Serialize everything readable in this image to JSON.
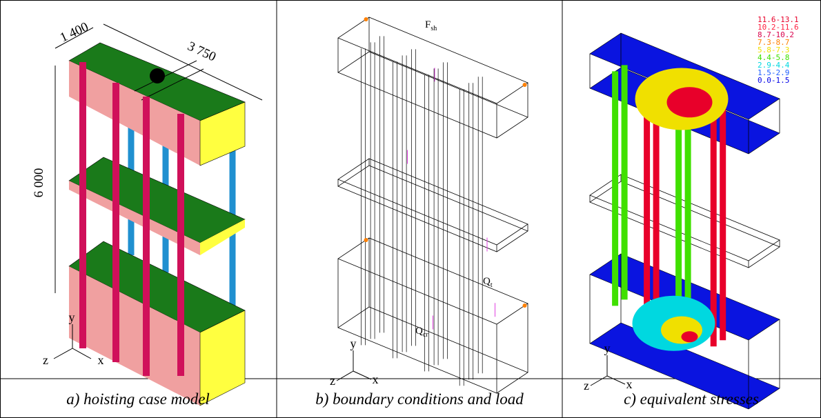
{
  "panels": [
    {
      "caption": "a) hoisting case model",
      "dimensions": {
        "depth": "1 400",
        "length": "3 750",
        "height": "6 000"
      },
      "axes": {
        "y": "y",
        "z": "z",
        "x": "x"
      }
    },
    {
      "caption": "b) boundary conditions and load",
      "loads": [
        {
          "symbol": "F",
          "subscript": "sh"
        },
        {
          "symbol": "Q",
          "subscript": "t"
        },
        {
          "symbol": "Q",
          "subscript": "cr"
        }
      ],
      "axes": {
        "y": "y",
        "z": "z",
        "x": "x"
      }
    },
    {
      "caption": "c) equivalent stresses",
      "legend": [
        {
          "label": "11.6-13.1",
          "color": "#e8002a"
        },
        {
          "label": "10.2-11.6",
          "color": "#ff2040"
        },
        {
          "label": "8.7-10.2",
          "color": "#d8004c"
        },
        {
          "label": "7.3-8.7",
          "color": "#ff8000"
        },
        {
          "label": "5.8-7.3",
          "color": "#f0e000"
        },
        {
          "label": "4.4-5.8",
          "color": "#40e000"
        },
        {
          "label": "2.9-4.4",
          "color": "#00d8e0"
        },
        {
          "label": "1.5-2.9",
          "color": "#2060ff"
        },
        {
          "label": "0.0-1.5",
          "color": "#0000e8"
        }
      ],
      "axes": {
        "y": "y",
        "z": "z",
        "x": "x"
      }
    }
  ]
}
